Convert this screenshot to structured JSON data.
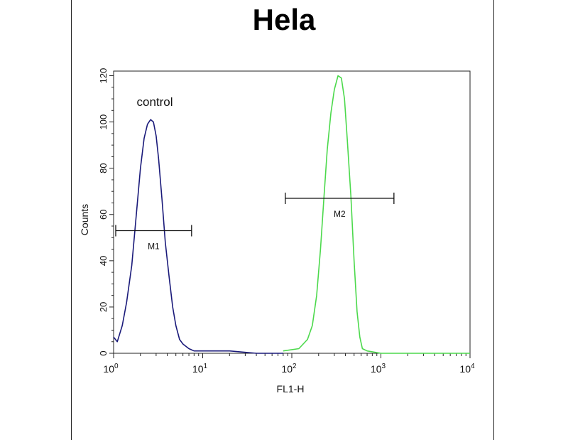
{
  "chart_data": {
    "type": "histogram",
    "title": "Hela",
    "xlabel": "FL1-H",
    "ylabel": "Counts",
    "x_scale": "log",
    "xlim": [
      1,
      10000
    ],
    "ylim": [
      0,
      122
    ],
    "x_ticks": [
      {
        "value": 1,
        "base": "10",
        "exp": "0"
      },
      {
        "value": 10,
        "base": "10",
        "exp": "1"
      },
      {
        "value": 100,
        "base": "10",
        "exp": "2"
      },
      {
        "value": 1000,
        "base": "10",
        "exp": "3"
      },
      {
        "value": 10000,
        "base": "10",
        "exp": "4"
      }
    ],
    "y_ticks": [
      "0",
      "20",
      "40",
      "60",
      "80",
      "100",
      "120"
    ],
    "y_tick_values": [
      0,
      20,
      40,
      60,
      80,
      100,
      120
    ],
    "grid": false,
    "series": [
      {
        "name": "control",
        "color": "#1a1a7a",
        "x": [
          1.0,
          1.1,
          1.25,
          1.4,
          1.6,
          1.8,
          2.0,
          2.2,
          2.4,
          2.6,
          2.8,
          3.0,
          3.2,
          3.5,
          3.8,
          4.2,
          4.6,
          5.0,
          5.5,
          6.0,
          7.0,
          8.0,
          10,
          15,
          20,
          40,
          80
        ],
        "y": [
          7,
          5,
          12,
          22,
          38,
          60,
          80,
          93,
          99,
          101,
          100,
          94,
          84,
          66,
          48,
          33,
          20,
          12,
          6,
          4,
          2,
          1,
          1,
          1,
          1,
          0,
          0
        ]
      },
      {
        "color": "#4cd94c",
        "x": [
          80,
          120,
          150,
          170,
          190,
          210,
          230,
          250,
          275,
          300,
          330,
          360,
          390,
          420,
          460,
          500,
          540,
          580,
          620,
          700,
          1000,
          2000,
          10000
        ],
        "y": [
          1,
          2,
          6,
          12,
          25,
          45,
          68,
          88,
          104,
          114,
          120,
          119,
          110,
          92,
          68,
          40,
          18,
          7,
          2,
          1,
          0,
          0,
          0
        ]
      }
    ],
    "annotations": [
      {
        "label": "control",
        "x": 1.8,
        "y": 107
      },
      {
        "label": "M1",
        "x1": 1.0,
        "x2": 7.5,
        "y": 53
      },
      {
        "label": "M2",
        "x1": 80,
        "x2": 1400,
        "y": 67
      }
    ]
  }
}
